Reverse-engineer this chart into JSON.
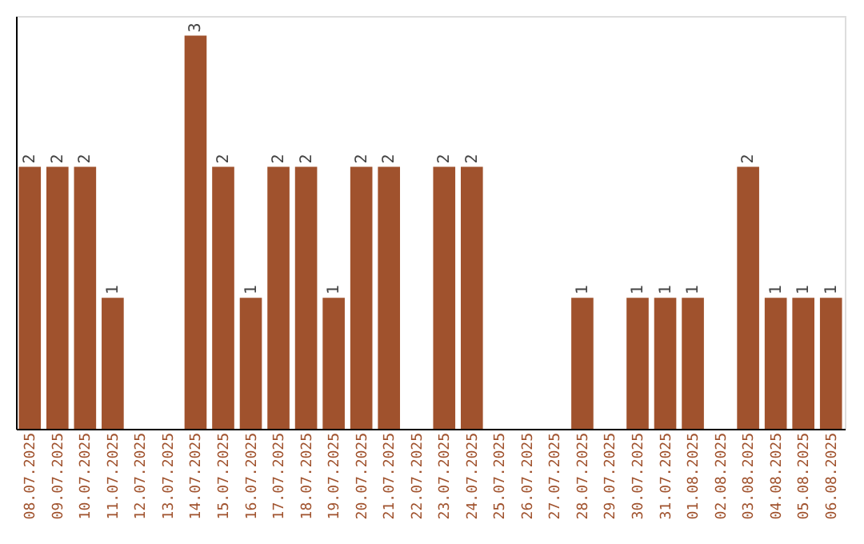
{
  "chart_data": {
    "type": "bar",
    "categories": [
      "08.07.2025",
      "09.07.2025",
      "10.07.2025",
      "11.07.2025",
      "12.07.2025",
      "13.07.2025",
      "14.07.2025",
      "15.07.2025",
      "16.07.2025",
      "17.07.2025",
      "18.07.2025",
      "19.07.2025",
      "20.07.2025",
      "21.07.2025",
      "22.07.2025",
      "23.07.2025",
      "24.07.2025",
      "25.07.2025",
      "26.07.2025",
      "27.07.2025",
      "28.07.2025",
      "29.07.2025",
      "30.07.2025",
      "31.07.2025",
      "01.08.2025",
      "02.08.2025",
      "03.08.2025",
      "04.08.2025",
      "05.08.2025",
      "06.08.2025"
    ],
    "values": [
      2,
      2,
      2,
      1,
      0,
      0,
      3,
      2,
      1,
      2,
      2,
      1,
      2,
      2,
      0,
      2,
      2,
      0,
      0,
      0,
      1,
      0,
      1,
      1,
      1,
      0,
      2,
      1,
      1,
      1
    ],
    "value_labels": [
      "2",
      "2",
      "2",
      "1",
      null,
      null,
      "3",
      "2",
      "1",
      "2",
      "2",
      "1",
      "2",
      "2",
      null,
      "2",
      "2",
      null,
      null,
      null,
      "1",
      null,
      "1",
      "1",
      "1",
      null,
      "2",
      "1",
      "1",
      "1"
    ],
    "color": "#a0522d",
    "grid": false,
    "tick_labels": "x"
  }
}
